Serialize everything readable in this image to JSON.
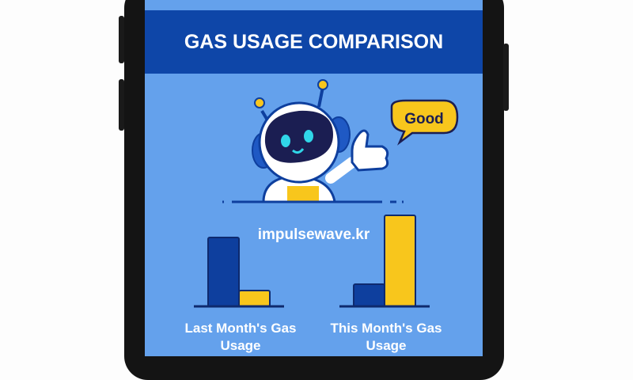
{
  "header": {
    "title": "GAS USAGE COMPARISON"
  },
  "mascot": {
    "speech": "Good"
  },
  "watermark": "impulsewave.kr",
  "colors": {
    "screen": "#64a1ec",
    "header": "#0e46a8",
    "blue_bar": "#0e3f9e",
    "yellow_bar": "#f8c61c"
  },
  "chart_data": [
    {
      "type": "bar",
      "label": "Last Month's Gas Usage",
      "values": [
        87,
        20
      ],
      "colors": [
        "blue",
        "yellow"
      ]
    },
    {
      "type": "bar",
      "label": "This Month's Gas Usage",
      "values": [
        28,
        115
      ],
      "colors": [
        "blue",
        "yellow"
      ]
    }
  ]
}
